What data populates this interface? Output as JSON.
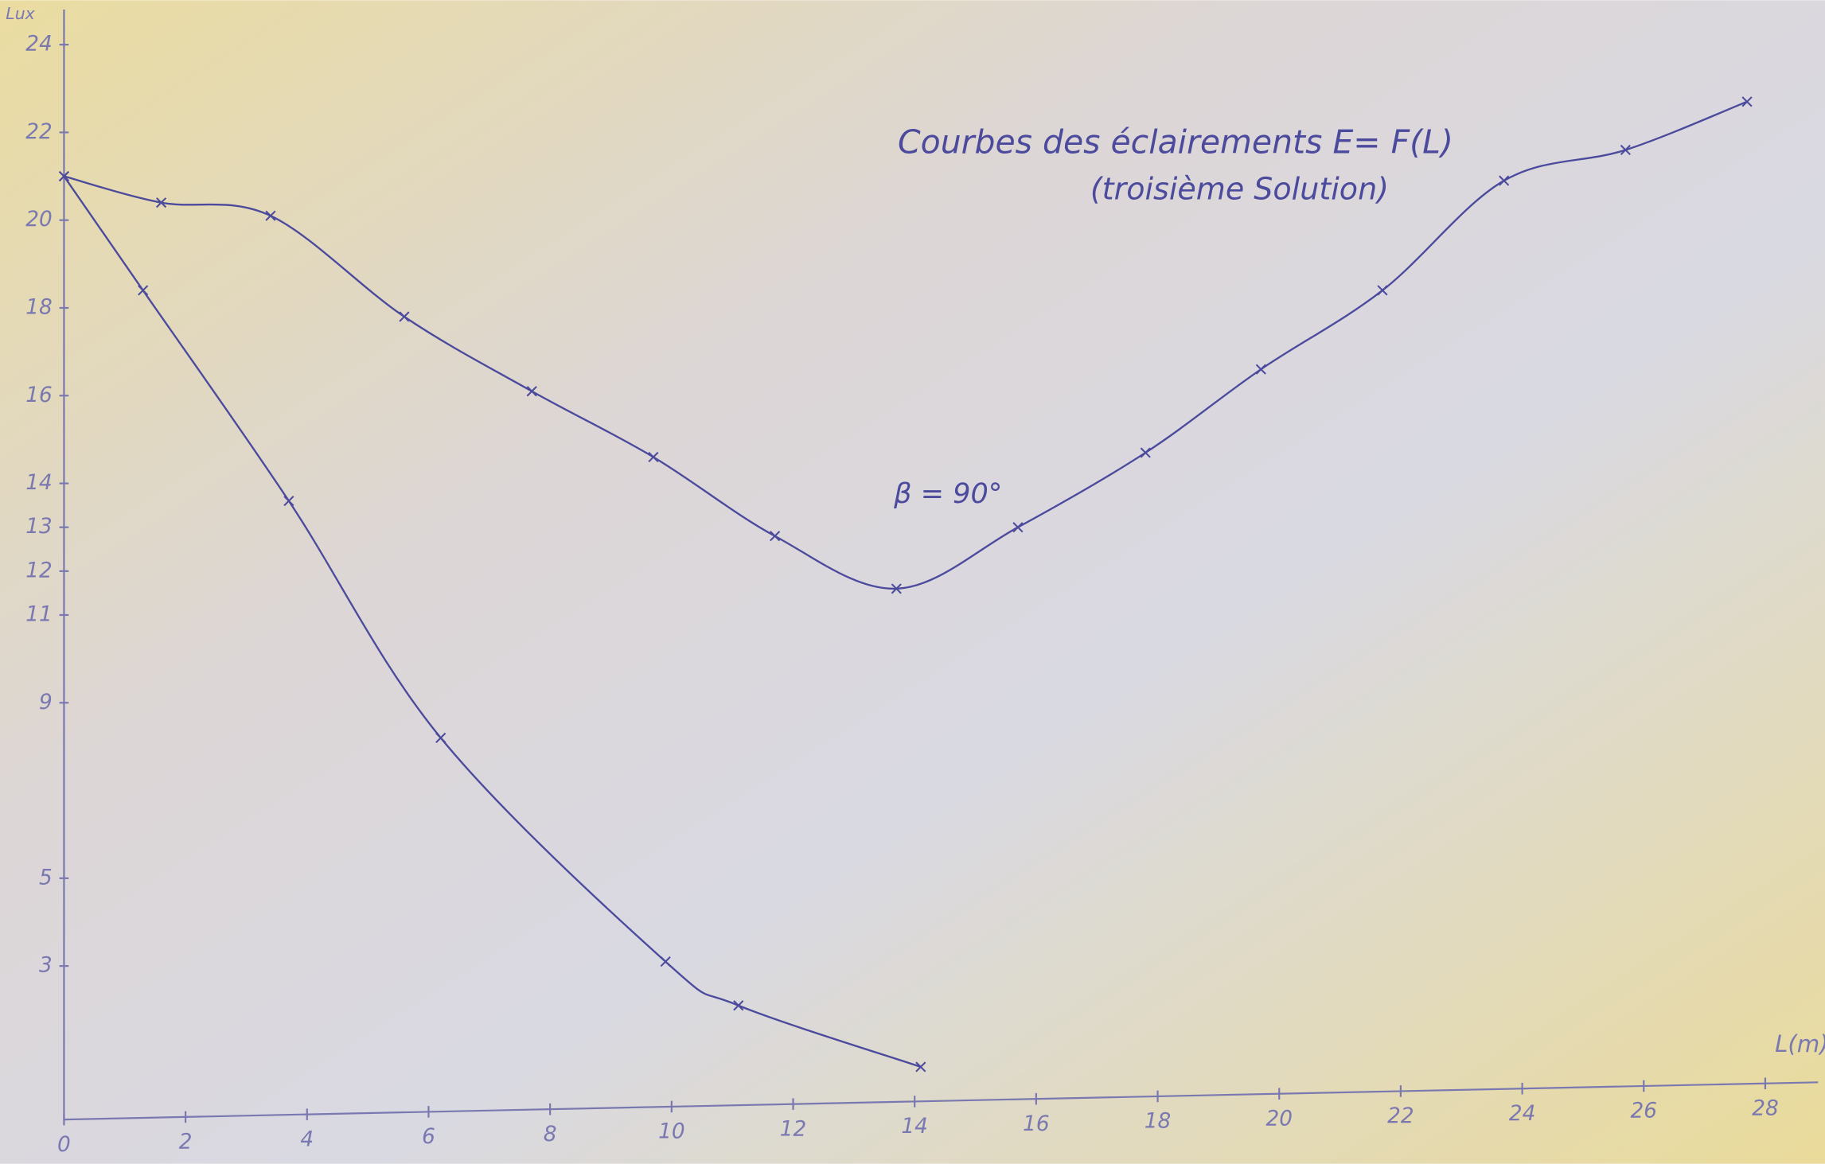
{
  "chart_data": {
    "type": "line",
    "title": "Courbes des éclairements E= F(L)",
    "subtitle": "(troisième Solution)",
    "annotation": "β = 90°",
    "y_label": "Lux",
    "x_label": "L(m)",
    "xlim": [
      0,
      28.6
    ],
    "ylim": [
      -0.5,
      24.8
    ],
    "xticks": [
      0,
      2,
      4,
      6,
      8,
      10,
      12,
      14,
      16,
      18,
      20,
      22,
      24,
      26,
      28
    ],
    "yticks": [
      3,
      5,
      9,
      11,
      12,
      13,
      14,
      16,
      18,
      20,
      22,
      24
    ],
    "series": [
      {
        "color": "#4b4a9c",
        "x": [
          0,
          1.6,
          3.4,
          5.6,
          7.7,
          9.7,
          11.7,
          13.7,
          15.7,
          17.8,
          19.7,
          21.7,
          23.7,
          25.7,
          27.7
        ],
        "values": [
          21,
          20.4,
          20.1,
          17.8,
          16.1,
          14.6,
          12.8,
          11.6,
          13,
          14.7,
          16.6,
          18.4,
          20.9,
          21.6,
          22.7
        ]
      },
      {
        "color": "#4b4a9c",
        "x": [
          0,
          1.3,
          3.7,
          6.2,
          9.9,
          11.1,
          14.1
        ],
        "values": [
          21,
          18.4,
          13.6,
          8.2,
          3.1,
          2.1,
          0.7
        ]
      }
    ]
  }
}
